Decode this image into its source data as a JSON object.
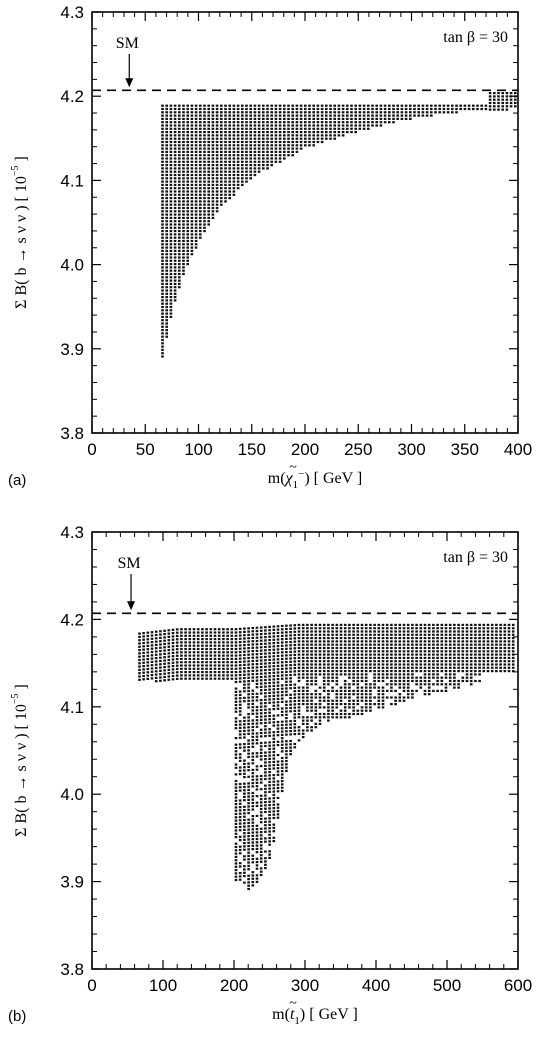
{
  "chart_data": [
    {
      "type": "scatter",
      "panel_label": "(a)",
      "xlabel_main": "m(",
      "xlabel_sym": "χ",
      "xlabel_tilde": "~",
      "xlabel_sub": "1",
      "xlabel_sup": "−",
      "xlabel_unit": ")  [ GeV ]",
      "ylabel_main": "Σ B( b → s ν ν ) [ 10",
      "ylabel_sub": "i",
      "ylabel_exp": "−5",
      "ylabel_end": " ]",
      "xlim": [
        0,
        400
      ],
      "ylim": [
        3.8,
        4.3
      ],
      "xticks": [
        "0",
        "50",
        "100",
        "150",
        "200",
        "250",
        "300",
        "350",
        "400"
      ],
      "yticks": [
        "3.8",
        "3.9",
        "4.0",
        "4.1",
        "4.2",
        "4.3"
      ],
      "annotation": "tan β = 30",
      "sm_label": "SM",
      "sm_value": 4.207,
      "sm_arrow_x": 35,
      "region_upper": [
        [
          65,
          4.19
        ],
        [
          400,
          4.19
        ],
        [
          400,
          4.205
        ]
      ],
      "region_lower": [
        [
          65,
          3.89
        ],
        [
          75,
          3.95
        ],
        [
          85,
          3.99
        ],
        [
          100,
          4.03
        ],
        [
          120,
          4.07
        ],
        [
          150,
          4.105
        ],
        [
          200,
          4.14
        ],
        [
          250,
          4.16
        ],
        [
          300,
          4.175
        ],
        [
          350,
          4.183
        ],
        [
          400,
          4.186
        ]
      ]
    },
    {
      "type": "scatter",
      "panel_label": "(b)",
      "xlabel_main": "m(",
      "xlabel_sym": "t",
      "xlabel_tilde": "~",
      "xlabel_sub": "1",
      "xlabel_sup": "",
      "xlabel_unit": ")  [ GeV ]",
      "ylabel_main": "Σ B( b → s ν ν ) [ 10",
      "ylabel_sub": "i",
      "ylabel_exp": "−5",
      "ylabel_end": " ]",
      "xlim": [
        0,
        600
      ],
      "ylim": [
        3.8,
        4.3
      ],
      "xticks": [
        "0",
        "100",
        "200",
        "300",
        "400",
        "500",
        "600"
      ],
      "yticks": [
        "3.8",
        "3.9",
        "4.0",
        "4.1",
        "4.2",
        "4.3"
      ],
      "annotation": "tan β = 30",
      "sm_label": "SM",
      "sm_value": 4.207,
      "sm_arrow_x": 55,
      "band_x": [
        [
          65,
          4.13,
          4.185
        ],
        [
          120,
          4.13,
          4.19
        ],
        [
          200,
          4.13,
          4.19
        ],
        [
          290,
          4.14,
          4.195
        ],
        [
          400,
          4.14,
          4.195
        ],
        [
          600,
          4.14,
          4.195
        ]
      ],
      "tail": [
        [
          200,
          3.9,
          4.12
        ],
        [
          210,
          3.9,
          4.12
        ],
        [
          220,
          3.89,
          4.11
        ],
        [
          230,
          3.9,
          4.1
        ],
        [
          240,
          3.91,
          4.11
        ],
        [
          250,
          3.93,
          4.1
        ],
        [
          260,
          3.97,
          4.1
        ],
        [
          270,
          4.02,
          4.11
        ],
        [
          280,
          4.05,
          4.11
        ],
        [
          300,
          4.07,
          4.12
        ],
        [
          330,
          4.085,
          4.13
        ],
        [
          370,
          4.09,
          4.13
        ],
        [
          410,
          4.1,
          4.135
        ],
        [
          450,
          4.11,
          4.14
        ],
        [
          500,
          4.12,
          4.14
        ],
        [
          550,
          4.13,
          4.14
        ]
      ]
    }
  ]
}
